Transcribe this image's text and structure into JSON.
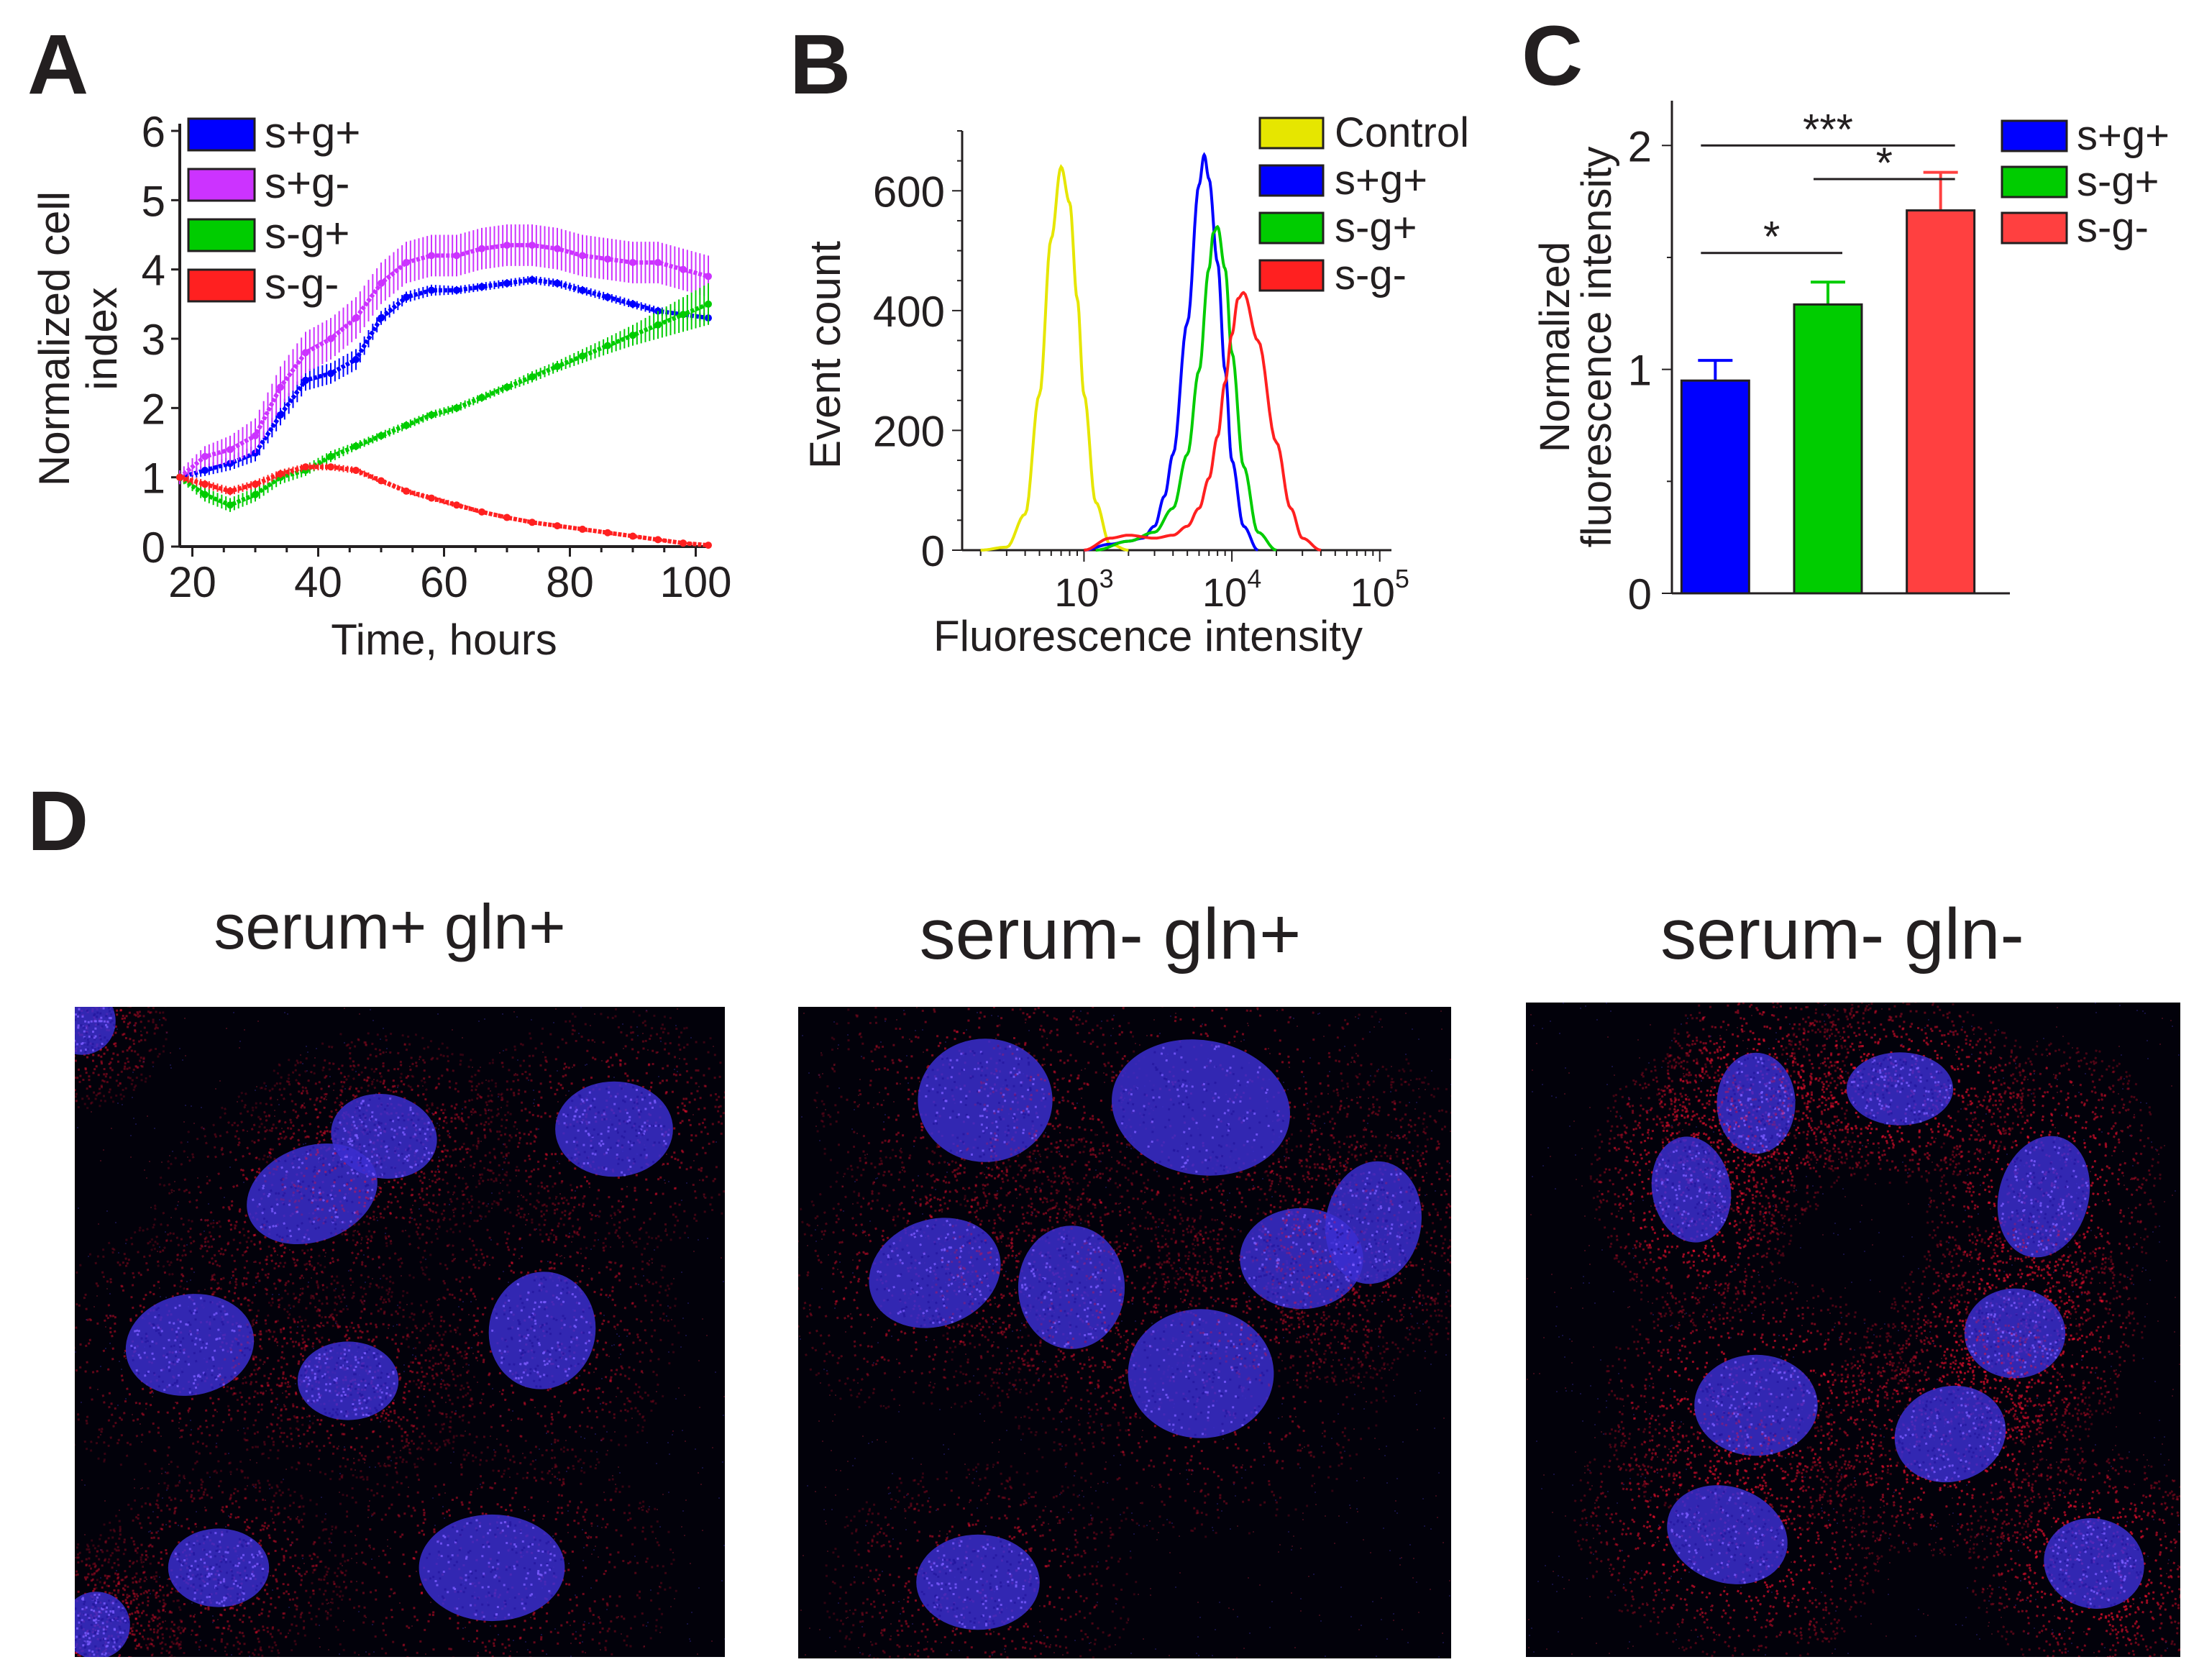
{
  "colors": {
    "blue": "#0000ff",
    "magenta": "#cc33ff",
    "green": "#00cc00",
    "red": "#ff2020",
    "yellow": "#e6e600",
    "black": "#231f20"
  },
  "panel_letters": {
    "a": "A",
    "b": "B",
    "c": "C",
    "d": "D"
  },
  "chart_data": [
    {
      "id": "A",
      "type": "line",
      "xlabel": "Time, hours",
      "ylabel": "Normalized cell index",
      "xlim": [
        18,
        102
      ],
      "ylim": [
        0,
        6
      ],
      "xticks": [
        20,
        40,
        60,
        80,
        100
      ],
      "yticks": [
        0,
        1,
        2,
        3,
        4,
        5,
        6
      ],
      "legend_position": "top-left",
      "error_bars": true,
      "x": [
        18,
        22,
        26,
        30,
        34,
        38,
        42,
        46,
        50,
        54,
        58,
        62,
        66,
        70,
        74,
        78,
        82,
        86,
        90,
        94,
        98,
        102
      ],
      "series": [
        {
          "name": "s+g+",
          "color": "#0000ff",
          "values": [
            1.0,
            1.1,
            1.2,
            1.35,
            1.9,
            2.4,
            2.5,
            2.7,
            3.3,
            3.6,
            3.7,
            3.7,
            3.75,
            3.8,
            3.85,
            3.8,
            3.7,
            3.6,
            3.5,
            3.4,
            3.35,
            3.3
          ],
          "errors": [
            0.05,
            0.08,
            0.1,
            0.12,
            0.15,
            0.15,
            0.15,
            0.15,
            0.1,
            0.08,
            0.08,
            0.06,
            0.06,
            0.06,
            0.06,
            0.06,
            0.06,
            0.06,
            0.06,
            0.06,
            0.06,
            0.06
          ]
        },
        {
          "name": "s+g-",
          "color": "#cc33ff",
          "values": [
            1.0,
            1.3,
            1.4,
            1.6,
            2.3,
            2.8,
            3.0,
            3.3,
            3.8,
            4.1,
            4.2,
            4.2,
            4.3,
            4.35,
            4.35,
            4.3,
            4.2,
            4.15,
            4.1,
            4.1,
            4.0,
            3.9
          ],
          "errors": [
            0.1,
            0.15,
            0.2,
            0.25,
            0.3,
            0.3,
            0.3,
            0.3,
            0.3,
            0.3,
            0.3,
            0.3,
            0.3,
            0.3,
            0.3,
            0.3,
            0.3,
            0.3,
            0.3,
            0.3,
            0.3,
            0.3
          ]
        },
        {
          "name": "s-g+",
          "color": "#00cc00",
          "values": [
            1.0,
            0.75,
            0.6,
            0.75,
            1.0,
            1.1,
            1.3,
            1.45,
            1.6,
            1.75,
            1.9,
            2.0,
            2.15,
            2.3,
            2.45,
            2.6,
            2.75,
            2.9,
            3.05,
            3.2,
            3.35,
            3.5
          ],
          "errors": [
            0.05,
            0.1,
            0.1,
            0.1,
            0.1,
            0.08,
            0.08,
            0.06,
            0.06,
            0.06,
            0.06,
            0.06,
            0.06,
            0.06,
            0.08,
            0.08,
            0.1,
            0.12,
            0.15,
            0.2,
            0.25,
            0.3
          ]
        },
        {
          "name": "s-g-",
          "color": "#ff2020",
          "values": [
            1.0,
            0.9,
            0.8,
            0.9,
            1.05,
            1.15,
            1.15,
            1.1,
            0.95,
            0.8,
            0.7,
            0.6,
            0.5,
            0.42,
            0.35,
            0.3,
            0.25,
            0.2,
            0.15,
            0.1,
            0.05,
            0.02
          ],
          "errors": [
            0.05,
            0.06,
            0.06,
            0.06,
            0.06,
            0.05,
            0.05,
            0.05,
            0.04,
            0.04,
            0.04,
            0.04,
            0.03,
            0.03,
            0.03,
            0.03,
            0.03,
            0.03,
            0.02,
            0.02,
            0.02,
            0.02
          ]
        }
      ]
    },
    {
      "id": "B",
      "type": "line",
      "xlabel": "Fluorescence intensity",
      "ylabel": "Event count",
      "xscale": "log",
      "xlim": [
        150,
        120000
      ],
      "ylim": [
        0,
        700
      ],
      "xticks": [
        {
          "value": 1000,
          "label": "10",
          "exp": "3"
        },
        {
          "value": 10000,
          "label": "10",
          "exp": "4"
        },
        {
          "value": 100000,
          "label": "10",
          "exp": "5"
        }
      ],
      "yticks": [
        0,
        200,
        400,
        600
      ],
      "legend_position": "top-right",
      "series": [
        {
          "name": "Control",
          "color": "#e6e600",
          "x": [
            200,
            300,
            400,
            500,
            600,
            700,
            800,
            900,
            1000,
            1200,
            1500,
            2000
          ],
          "values": [
            0,
            5,
            60,
            260,
            520,
            640,
            580,
            420,
            260,
            80,
            10,
            0
          ]
        },
        {
          "name": "s+g+",
          "color": "#0000ff",
          "x": [
            1000,
            1500,
            2000,
            2500,
            3000,
            3500,
            4000,
            5000,
            6000,
            6500,
            7000,
            8000,
            9000,
            10000,
            12000,
            15000
          ],
          "values": [
            0,
            10,
            15,
            20,
            40,
            90,
            160,
            380,
            610,
            660,
            620,
            480,
            300,
            150,
            40,
            0
          ]
        },
        {
          "name": "s-g+",
          "color": "#00cc00",
          "x": [
            1200,
            2000,
            3000,
            4000,
            5000,
            6000,
            7000,
            7500,
            8000,
            9000,
            10000,
            12000,
            15000,
            20000
          ],
          "values": [
            0,
            15,
            30,
            70,
            160,
            300,
            470,
            530,
            540,
            470,
            330,
            140,
            30,
            0
          ]
        },
        {
          "name": "s-g-",
          "color": "#ff2020",
          "x": [
            1000,
            1500,
            2000,
            3000,
            4000,
            5000,
            6000,
            7000,
            8000,
            9000,
            10000,
            11000,
            12000,
            15000,
            20000,
            25000,
            30000,
            40000
          ],
          "values": [
            0,
            20,
            25,
            20,
            25,
            40,
            70,
            120,
            190,
            280,
            360,
            420,
            430,
            350,
            180,
            70,
            20,
            0
          ]
        }
      ]
    },
    {
      "id": "C",
      "type": "bar",
      "ylabel": "Normalized fluorescence intensity",
      "ylim": [
        0,
        2.2
      ],
      "yticks": [
        0,
        1,
        2
      ],
      "legend_position": "right",
      "categories": [
        "s+g+",
        "s-g+",
        "s-g-"
      ],
      "values": [
        0.95,
        1.29,
        1.71
      ],
      "errors": [
        0.09,
        0.1,
        0.17
      ],
      "colors": [
        "#0000ff",
        "#00cc00",
        "#ff4040"
      ],
      "significance": [
        {
          "from": 0,
          "to": 1,
          "label": "*"
        },
        {
          "from": 0,
          "to": 2,
          "label": "***"
        },
        {
          "from": 1,
          "to": 2,
          "label": "*"
        }
      ]
    }
  ],
  "micrographs": [
    {
      "title": "serum+ gln+"
    },
    {
      "title": "serum- gln+"
    },
    {
      "title": "serum- gln-"
    }
  ]
}
